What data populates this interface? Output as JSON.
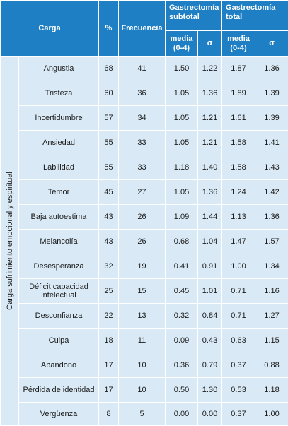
{
  "header": {
    "carga": "Carga",
    "percent": "%",
    "frecuencia": "Frecuencia",
    "group_subtotal": "Gastrectomía subtotal",
    "group_total": "Gastrectomía total",
    "media": "media (0-4)",
    "sigma": "σ"
  },
  "side_label": "Carga sufrimiento emocional y espiritual",
  "rows": [
    {
      "carga": "Angustia",
      "pct": "68",
      "freq": "41",
      "sub_media": "1.50",
      "sub_sigma": "1.22",
      "tot_media": "1.87",
      "tot_sigma": "1.36"
    },
    {
      "carga": "Tristeza",
      "pct": "60",
      "freq": "36",
      "sub_media": "1.05",
      "sub_sigma": "1.36",
      "tot_media": "1.89",
      "tot_sigma": "1.39"
    },
    {
      "carga": "Incertidumbre",
      "pct": "57",
      "freq": "34",
      "sub_media": "1.05",
      "sub_sigma": "1.21",
      "tot_media": "1.61",
      "tot_sigma": "1.39"
    },
    {
      "carga": "Ansiedad",
      "pct": "55",
      "freq": "33",
      "sub_media": "1.05",
      "sub_sigma": "1.21",
      "tot_media": "1.58",
      "tot_sigma": "1.41"
    },
    {
      "carga": "Labilidad",
      "pct": "55",
      "freq": "33",
      "sub_media": "1.18",
      "sub_sigma": "1.40",
      "tot_media": "1.58",
      "tot_sigma": "1.43"
    },
    {
      "carga": "Temor",
      "pct": "45",
      "freq": "27",
      "sub_media": "1.05",
      "sub_sigma": "1.36",
      "tot_media": "1.24",
      "tot_sigma": "1.42"
    },
    {
      "carga": "Baja autoestima",
      "pct": "43",
      "freq": "26",
      "sub_media": "1.09",
      "sub_sigma": "1.44",
      "tot_media": "1.13",
      "tot_sigma": "1.36"
    },
    {
      "carga": "Melancolía",
      "pct": "43",
      "freq": "26",
      "sub_media": "0.68",
      "sub_sigma": "1.04",
      "tot_media": "1.47",
      "tot_sigma": "1.57"
    },
    {
      "carga": "Desesperanza",
      "pct": "32",
      "freq": "19",
      "sub_media": "0.41",
      "sub_sigma": "0.91",
      "tot_media": "1.00",
      "tot_sigma": "1.34"
    },
    {
      "carga": "Déficit capacidad intelectual",
      "pct": "25",
      "freq": "15",
      "sub_media": "0.45",
      "sub_sigma": "1.01",
      "tot_media": "0.71",
      "tot_sigma": "1.16"
    },
    {
      "carga": "Desconfianza",
      "pct": "22",
      "freq": "13",
      "sub_media": "0.32",
      "sub_sigma": "0.84",
      "tot_media": "0.71",
      "tot_sigma": "1.27"
    },
    {
      "carga": "Culpa",
      "pct": "18",
      "freq": "11",
      "sub_media": "0.09",
      "sub_sigma": "0.43",
      "tot_media": "0.63",
      "tot_sigma": "1.15"
    },
    {
      "carga": "Abandono",
      "pct": "17",
      "freq": "10",
      "sub_media": "0.36",
      "sub_sigma": "0.79",
      "tot_media": "0.37",
      "tot_sigma": "0.88"
    },
    {
      "carga": "Pérdida de identidad",
      "pct": "17",
      "freq": "10",
      "sub_media": "0.50",
      "sub_sigma": "1.30",
      "tot_media": "0.53",
      "tot_sigma": "1.18"
    },
    {
      "carga": "Vergüenza",
      "pct": "8",
      "freq": "5",
      "sub_media": "0.00",
      "sub_sigma": "0.00",
      "tot_media": "0.37",
      "tot_sigma": "1.00"
    }
  ],
  "colors": {
    "header_bg": "#1e7fc4",
    "header_text": "#ffffff",
    "cell_bg": "#d9eaf6",
    "grid": "#ffffff"
  }
}
